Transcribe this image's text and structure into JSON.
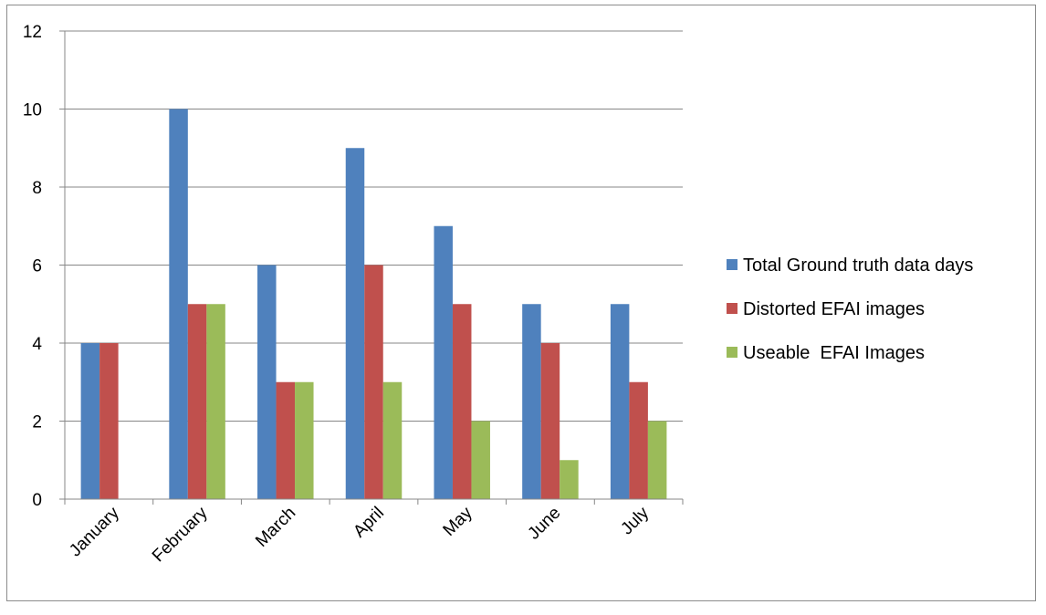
{
  "chart_data": {
    "type": "bar",
    "title": "",
    "xlabel": "",
    "ylabel": "",
    "categories": [
      "January",
      "February",
      "March",
      "April",
      "May",
      "June",
      "July"
    ],
    "series": [
      {
        "name": "Total Ground truth data days",
        "color": "#4f81bd",
        "values": [
          4,
          10,
          6,
          9,
          7,
          5,
          5
        ]
      },
      {
        "name": "Distorted EFAI images",
        "color": "#c0504d",
        "values": [
          4,
          5,
          3,
          6,
          5,
          4,
          3
        ]
      },
      {
        "name": "Useable  EFAI Images",
        "color": "#9bbb59",
        "values": [
          0,
          5,
          3,
          3,
          2,
          1,
          2
        ]
      }
    ],
    "ylim": [
      0,
      12
    ],
    "yticks": [
      0,
      2,
      4,
      6,
      8,
      10,
      12
    ],
    "grid": true,
    "legend_position": "right"
  }
}
